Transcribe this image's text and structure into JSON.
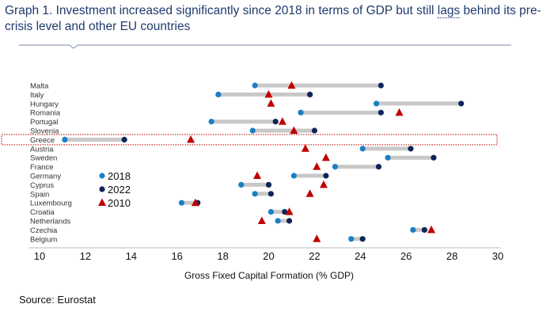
{
  "header": {
    "title_part1": "Graph 1. Investment increased significantly since 2018 in terms of GDP but still ",
    "title_dotted": "lags",
    "title_part2": " behind its pre-crisis level and other EU countries"
  },
  "source": "Source: Eurostat",
  "colors": {
    "y2018": "#1a7fc4",
    "y2022": "#0f2557",
    "y2010": "#c00000",
    "bar": "#c8c8c8",
    "highlight": "#c00000"
  },
  "chart_data": {
    "type": "dumbbell",
    "title": "Graph 1. Investment increased significantly since 2018 in terms of GDP but still lags behind its pre-crisis level and other EU countries",
    "xlabel": "Gross Fixed Capital Formation (% GDP)",
    "xlim": [
      10,
      30
    ],
    "xticks": [
      "10",
      "12",
      "14",
      "16",
      "18",
      "20",
      "22",
      "24",
      "26",
      "28",
      "30"
    ],
    "legend": {
      "placement": "lower-left",
      "entries": [
        "2018",
        "2022",
        "2010"
      ]
    },
    "highlighted": "Greece",
    "categories": [
      "Malta",
      "Italy",
      "Hungary",
      "Romania",
      "Portugal",
      "Slovenia",
      "Greece",
      "Austria",
      "Sweden",
      "France",
      "Germany",
      "Cyprus",
      "Spain",
      "Luxembourg",
      "Croatia",
      "Netherlands",
      "Czechia",
      "Belgium"
    ],
    "series": [
      {
        "name": "2018",
        "values": [
          19.4,
          17.8,
          24.7,
          21.4,
          17.5,
          19.3,
          11.1,
          24.1,
          25.2,
          22.9,
          21.1,
          18.8,
          19.4,
          16.2,
          20.1,
          20.4,
          26.3,
          23.6
        ]
      },
      {
        "name": "2022",
        "values": [
          24.9,
          21.8,
          28.4,
          24.9,
          20.3,
          22.0,
          13.7,
          26.2,
          27.2,
          24.8,
          22.5,
          20.0,
          20.1,
          16.9,
          20.7,
          20.9,
          26.8,
          24.1
        ]
      },
      {
        "name": "2010",
        "values": [
          21.0,
          20.0,
          20.1,
          25.7,
          20.6,
          21.1,
          16.6,
          21.6,
          22.5,
          22.1,
          19.5,
          22.4,
          21.8,
          16.8,
          20.9,
          19.7,
          27.1,
          22.1
        ]
      }
    ]
  }
}
